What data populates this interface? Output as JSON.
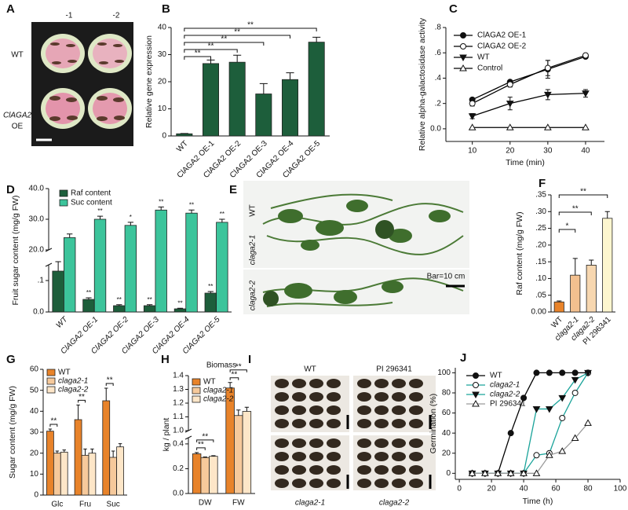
{
  "photos": [
    {
      "letter": "A",
      "labels": [
        "-1",
        "-2",
        "WT",
        "ClAGA2",
        "OE"
      ]
    },
    {
      "letter": "E",
      "labels": [
        "WT",
        "claga2-1",
        "claga2-2",
        "Bar=10 cm"
      ]
    },
    {
      "letter": "I",
      "labels": [
        "WT",
        "PI 296341",
        "claga2-1",
        "claga2-2"
      ]
    }
  ],
  "chart_data": [
    {
      "letter": "B",
      "type": "bar",
      "categories": [
        "WT",
        "ClAGA2 OE-1",
        "ClAGA2 OE-2",
        "ClAGA2 OE-3",
        "ClAGA2 OE-4",
        "ClAGA2 OE-5"
      ],
      "values": [
        0.8,
        26.7,
        27.2,
        15.5,
        20.8,
        34.6
      ],
      "errors": [
        0.1,
        1.3,
        2.6,
        3.8,
        2.5,
        1.8
      ],
      "color": "#1d5e3b",
      "ylabel": "Relative gene expression",
      "ylim": [
        0,
        40
      ],
      "yticks": [
        0,
        10,
        20,
        30,
        40
      ],
      "sig": [
        "**",
        "**",
        "**",
        "**",
        "**"
      ]
    },
    {
      "letter": "C",
      "type": "line",
      "x": [
        10,
        20,
        30,
        40
      ],
      "xlim": [
        3,
        45
      ],
      "xticks": [
        10,
        20,
        30,
        40
      ],
      "ylim": [
        -0.1,
        0.8
      ],
      "yticks": [
        {
          "value": 0,
          "label": "0.0"
        },
        {
          "value": 0.2,
          "label": ".2"
        },
        {
          "value": 0.4,
          "label": ".4"
        },
        {
          "value": 0.6,
          "label": ".6"
        },
        {
          "value": 0.8,
          "label": ".8"
        }
      ],
      "ylabel": "Relative alpha-galactosidase activity",
      "xlabel": "Time (min)",
      "legend": "upper left",
      "series": [
        {
          "name": "ClAGA2 OE-1",
          "color": "#000000",
          "marker": "circle",
          "filled": true,
          "values": [
            0.23,
            0.37,
            0.47,
            0.57
          ],
          "errors": [
            0.01,
            0.01,
            0.07,
            0.01
          ]
        },
        {
          "name": "ClAGA2 OE-2",
          "color": "#000000",
          "marker": "circle",
          "filled": false,
          "values": [
            0.2,
            0.35,
            0.48,
            0.58
          ],
          "errors": [
            0.02,
            0.02,
            0.06,
            0.01
          ]
        },
        {
          "name": "WT",
          "color": "#000000",
          "marker": "triangle-down",
          "filled": true,
          "values": [
            0.1,
            0.2,
            0.27,
            0.28
          ],
          "errors": [
            0.02,
            0.05,
            0.04,
            0.03
          ]
        },
        {
          "name": "Control",
          "color": "#000000",
          "marker": "triangle-up",
          "filled": false,
          "values": [
            0.01,
            0.01,
            0.01,
            0.01
          ]
        }
      ]
    },
    {
      "letter": "D",
      "type": "bar",
      "categories": [
        "WT",
        "ClAGA2 OE-1",
        "ClAGA2 OE-2",
        "ClAGA2 OE-3",
        "ClAGA2 OE-4",
        "ClAGA2 OE-5"
      ],
      "ylim": [
        0,
        40
      ],
      "ybreak": [
        0.15,
        20
      ],
      "yticks": [
        {
          "value": 0,
          "label": "0.0"
        },
        {
          "value": 0.1,
          "label": ".1"
        },
        {
          "value": 20,
          "label": "20.0"
        },
        {
          "value": 30,
          "label": "30.0"
        },
        {
          "value": 40,
          "label": "40.0"
        }
      ],
      "ylabel": "Fruit sugar content (mg/g FW)",
      "legend": "upper left",
      "series": [
        {
          "name": "Raf content",
          "color": "#1d5e3b",
          "values": [
            0.13,
            0.04,
            0.02,
            0.02,
            0.01,
            0.06
          ],
          "errors": [
            0.03,
            0.005,
            0.003,
            0.003,
            0.002,
            0.005
          ],
          "sig": [
            null,
            "**",
            "**",
            "**",
            "**",
            "**"
          ]
        },
        {
          "name": "Suc content",
          "color": "#3cc49b",
          "values": [
            24,
            30,
            28,
            33,
            32,
            29
          ],
          "errors": [
            1.2,
            1,
            1,
            1,
            1,
            1
          ],
          "sig": [
            null,
            "**",
            "*",
            "**",
            "**",
            "**"
          ]
        }
      ]
    },
    {
      "letter": "F",
      "type": "bar",
      "categories": [
        "WT",
        "claga2-1",
        "claga2-2",
        "PI 296341"
      ],
      "values": [
        0.03,
        0.11,
        0.14,
        0.28
      ],
      "errors": [
        0.003,
        0.05,
        0.015,
        0.02
      ],
      "colors": [
        "#e8832a",
        "#f3c08f",
        "#f7d7b0",
        "#fdf6cf"
      ],
      "ylabel": "Raf content (mg/g FW)",
      "ylim": [
        0,
        0.35
      ],
      "yticks": [
        {
          "value": 0,
          "label": "0.00"
        },
        {
          "value": 0.05,
          "label": ".05"
        },
        {
          "value": 0.1,
          "label": ".10"
        },
        {
          "value": 0.15,
          "label": ".15"
        },
        {
          "value": 0.2,
          "label": ".20"
        },
        {
          "value": 0.25,
          "label": ".25"
        },
        {
          "value": 0.3,
          "label": ".30"
        },
        {
          "value": 0.35,
          "label": ".35"
        }
      ],
      "sig": [
        "*",
        "**",
        "**"
      ]
    },
    {
      "letter": "G",
      "type": "bar",
      "categories": [
        "Glc",
        "Fru",
        "Suc"
      ],
      "ylim": [
        0,
        60
      ],
      "yticks": [
        0,
        10,
        20,
        30,
        40,
        50,
        60
      ],
      "ylabel": "Sugar content (mg/g FW)",
      "legend": "upper left",
      "series": [
        {
          "name": "WT",
          "color": "#e8832a",
          "values": [
            30.5,
            36,
            45
          ],
          "errors": [
            1,
            7,
            6
          ]
        },
        {
          "name": "claga2-1",
          "color": "#f6c99b",
          "values": [
            20,
            19,
            18
          ],
          "errors": [
            1,
            3,
            3
          ]
        },
        {
          "name": "claga2-2",
          "color": "#fde6c8",
          "values": [
            20.5,
            20,
            23
          ],
          "errors": [
            1,
            2,
            1.5
          ]
        }
      ],
      "sig": [
        [
          "**"
        ],
        [
          "**"
        ],
        [
          "**"
        ]
      ]
    },
    {
      "letter": "H",
      "type": "bar",
      "title": "Biomass",
      "categories": [
        "DW",
        "FW"
      ],
      "ylim": [
        0,
        1.4
      ],
      "ybreak": [
        0.45,
        1.0
      ],
      "yticks": [
        {
          "value": 0,
          "label": "0.0"
        },
        0.2,
        0.4,
        {
          "value": 1,
          "label": "1.0"
        },
        1.1,
        1.2,
        1.3,
        1.4
      ],
      "ylabel": "kg / plant",
      "legend": "upper left",
      "series": [
        {
          "name": "WT",
          "color": "#e8832a",
          "values": [
            0.32,
            1.31
          ],
          "errors": [
            0.01,
            0.04
          ]
        },
        {
          "name": "claga2-1",
          "color": "#f6c99b",
          "values": [
            0.29,
            1.11
          ],
          "errors": [
            0.005,
            0.04
          ]
        },
        {
          "name": "claga2-2",
          "color": "#fde6c8",
          "values": [
            0.3,
            1.14
          ],
          "errors": [
            0.005,
            0.03
          ]
        }
      ],
      "sig": [
        [
          "**",
          "**"
        ],
        [
          "**",
          "**"
        ]
      ]
    },
    {
      "letter": "J",
      "type": "line",
      "x": [
        8,
        16,
        24,
        32,
        40,
        48,
        56,
        64,
        72,
        80
      ],
      "xlim": [
        -2.5,
        100
      ],
      "xticks": [
        0,
        20,
        40,
        60,
        80,
        100
      ],
      "ylim": [
        -6,
        105
      ],
      "yticks": [
        0,
        20,
        40,
        60,
        80,
        100
      ],
      "ylabel": "Germination (%)",
      "xlabel": "Time (h)",
      "legend": "upper left",
      "series": [
        {
          "name": "WT",
          "color": "#000000",
          "marker": "circle",
          "filled": true,
          "values": [
            0,
            0,
            0,
            40,
            75,
            100,
            100,
            100,
            100,
            100
          ]
        },
        {
          "name": "claga2-1",
          "color": "#1aa39a",
          "marker": "circle",
          "filled": false,
          "values": [
            0,
            0,
            0,
            0,
            0,
            18,
            20,
            55,
            80,
            100
          ]
        },
        {
          "name": "claga2-2",
          "color": "#1aa39a",
          "marker": "triangle-down",
          "filled": true,
          "values": [
            0,
            0,
            0,
            0,
            0,
            64,
            64,
            75,
            93,
            100
          ]
        },
        {
          "name": "PI 296341",
          "color": "#9a9a9a",
          "marker": "triangle-up",
          "filled": false,
          "values": [
            0,
            0,
            0,
            0,
            0,
            0,
            18,
            22,
            35,
            50
          ]
        }
      ]
    }
  ]
}
